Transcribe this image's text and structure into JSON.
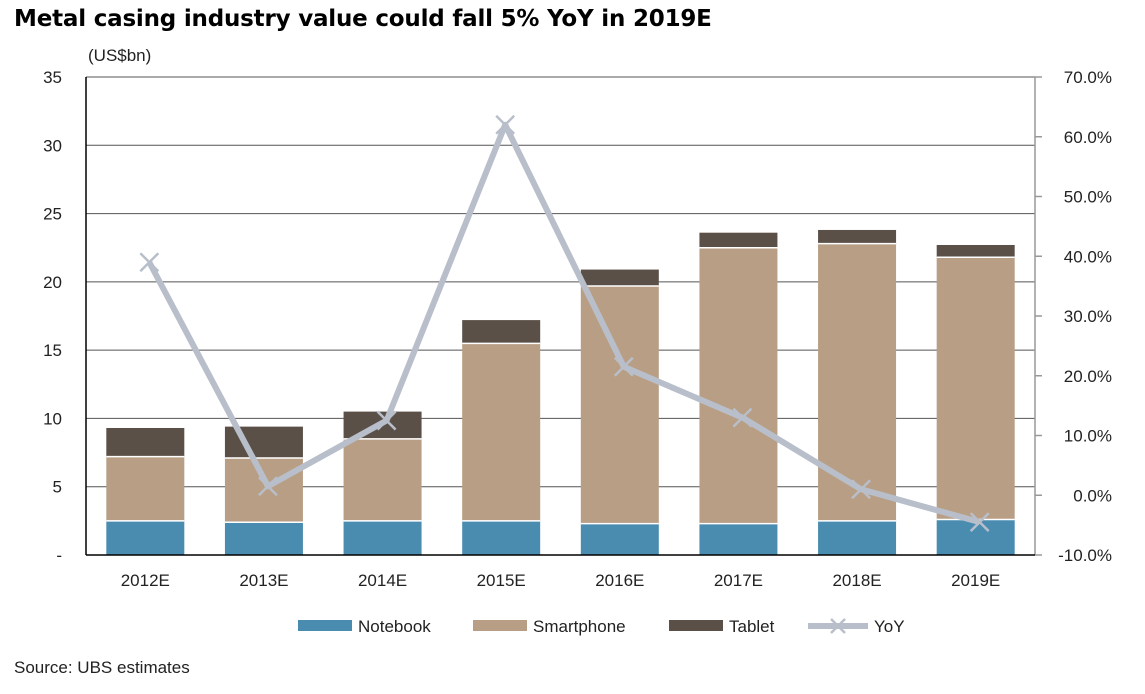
{
  "title": "Metal casing industry value could fall 5% YoY in 2019E",
  "unit_label": "(US$bn)",
  "source": "Source: UBS estimates",
  "chart_data": {
    "type": "bar",
    "stacked": true,
    "categories": [
      "2012E",
      "2013E",
      "2014E",
      "2015E",
      "2016E",
      "2017E",
      "2018E",
      "2019E"
    ],
    "series": [
      {
        "name": "Notebook",
        "color": "#4a8cb0",
        "values": [
          2.5,
          2.4,
          2.5,
          2.5,
          2.3,
          2.3,
          2.5,
          2.6
        ]
      },
      {
        "name": "Smartphone",
        "color": "#b89e84",
        "values": [
          4.7,
          4.7,
          6.0,
          13.0,
          17.4,
          20.2,
          20.3,
          19.2
        ]
      },
      {
        "name": "Tablet",
        "color": "#5a5048",
        "values": [
          2.1,
          2.3,
          2.0,
          1.7,
          1.2,
          1.1,
          1.0,
          0.9
        ]
      }
    ],
    "line_series": {
      "name": "YoY",
      "color": "#b8bfca",
      "axis": "right",
      "values": [
        39.0,
        1.5,
        12.5,
        62.0,
        21.5,
        13.0,
        1.0,
        -4.5
      ]
    },
    "ylim": [
      0,
      35
    ],
    "y_ticks": [
      {
        "v": 0,
        "label": "-"
      },
      {
        "v": 5,
        "label": "5"
      },
      {
        "v": 10,
        "label": "10"
      },
      {
        "v": 15,
        "label": "15"
      },
      {
        "v": 20,
        "label": "20"
      },
      {
        "v": 25,
        "label": "25"
      },
      {
        "v": 30,
        "label": "30"
      },
      {
        "v": 35,
        "label": "35"
      }
    ],
    "y2lim": [
      -10,
      70
    ],
    "y2_ticks": [
      {
        "v": -10,
        "label": "-10.0%"
      },
      {
        "v": 0,
        "label": "0.0%"
      },
      {
        "v": 10,
        "label": "10.0%"
      },
      {
        "v": 20,
        "label": "20.0%"
      },
      {
        "v": 30,
        "label": "30.0%"
      },
      {
        "v": 40,
        "label": "40.0%"
      },
      {
        "v": 50,
        "label": "50.0%"
      },
      {
        "v": 60,
        "label": "60.0%"
      },
      {
        "v": 70,
        "label": "70.0%"
      }
    ],
    "grid": true,
    "legend_position": "bottom"
  }
}
